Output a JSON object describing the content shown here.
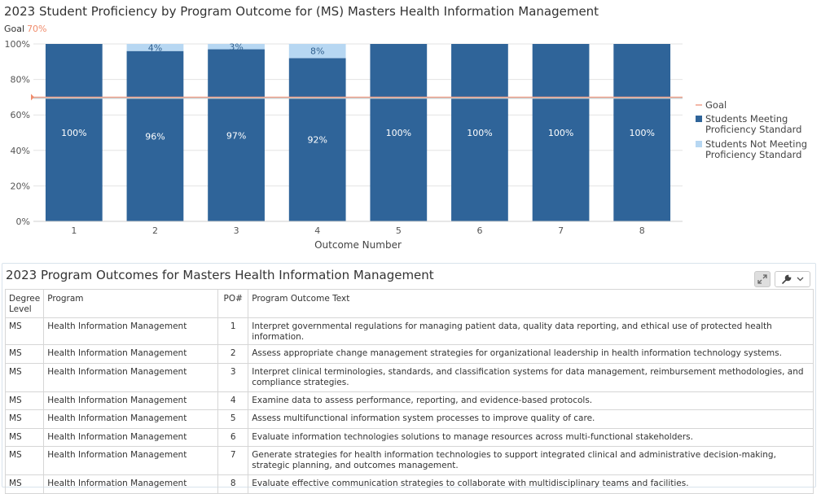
{
  "chart_data": {
    "type": "bar",
    "stacked": true,
    "title": "2023 Student Proficiency by Program Outcome for (MS) Masters Health Information Management",
    "goal_caption": "Goal",
    "goal_value_label": "70%",
    "goal": 70,
    "categories": [
      "1",
      "2",
      "3",
      "4",
      "5",
      "6",
      "7",
      "8"
    ],
    "series": [
      {
        "name": "Students Meeting Proficiency Standard",
        "color": "#2f6499",
        "values": [
          100,
          96,
          97,
          92,
          100,
          100,
          100,
          100
        ],
        "labels": [
          "100%",
          "96%",
          "97%",
          "92%",
          "100%",
          "100%",
          "100%",
          "100%"
        ]
      },
      {
        "name": "Students Not Meeting Proficiency Standard",
        "color": "#b7d7f2",
        "values": [
          0,
          4,
          3,
          8,
          0,
          0,
          0,
          0
        ],
        "labels": [
          "",
          "4%",
          "3%",
          "8%",
          "",
          "",
          "",
          ""
        ]
      }
    ],
    "ylim": [
      0,
      100
    ],
    "yticks": [
      "0%",
      "20%",
      "40%",
      "60%",
      "80%",
      "100%"
    ],
    "xlabel": "Outcome Number",
    "ylabel": "",
    "grid": true,
    "legend_position": "right",
    "legend": [
      {
        "label": "Goal",
        "kind": "line",
        "color": "#f0a08a"
      },
      {
        "label": "Students Meeting Proficiency Standard",
        "kind": "box",
        "color": "#2f6499"
      },
      {
        "label": "Students Not Meeting Proficiency Standard",
        "kind": "box",
        "color": "#b7d7f2"
      }
    ]
  },
  "table": {
    "title": "2023 Program Outcomes for Masters Health Information Management",
    "tools": {
      "expand_icon": "expand-icon",
      "settings_icon": "wrench-icon",
      "menu_icon": "chevron-down-icon"
    },
    "headers": {
      "degree": "Degree Level",
      "program": "Program",
      "po": "PO#",
      "text": "Program Outcome Text"
    },
    "rows": [
      {
        "degree": "MS",
        "program": "Health Information Management",
        "po": "1",
        "text": "Interpret governmental regulations for managing patient data, quality data reporting, and ethical use of protected health information."
      },
      {
        "degree": "MS",
        "program": "Health Information Management",
        "po": "2",
        "text": "Assess appropriate change management strategies for organizational leadership in health information technology systems."
      },
      {
        "degree": "MS",
        "program": "Health Information Management",
        "po": "3",
        "text": "Interpret clinical terminologies, standards, and classification systems for data management, reimbursement methodologies, and compliance strategies."
      },
      {
        "degree": "MS",
        "program": "Health Information Management",
        "po": "4",
        "text": "Examine data to assess performance, reporting, and evidence-based protocols."
      },
      {
        "degree": "MS",
        "program": "Health Information Management",
        "po": "5",
        "text": "Assess multifunctional information system processes to improve quality of care."
      },
      {
        "degree": "MS",
        "program": "Health Information Management",
        "po": "6",
        "text": "Evaluate information technologies solutions to manage resources across multi-functional stakeholders."
      },
      {
        "degree": "MS",
        "program": "Health Information Management",
        "po": "7",
        "text": "Generate strategies for health information technologies to support integrated clinical and administrative decision-making, strategic planning, and outcomes management."
      },
      {
        "degree": "MS",
        "program": "Health Information Management",
        "po": "8",
        "text": "Evaluate effective communication strategies to collaborate with multidisciplinary teams and facilities."
      }
    ]
  }
}
